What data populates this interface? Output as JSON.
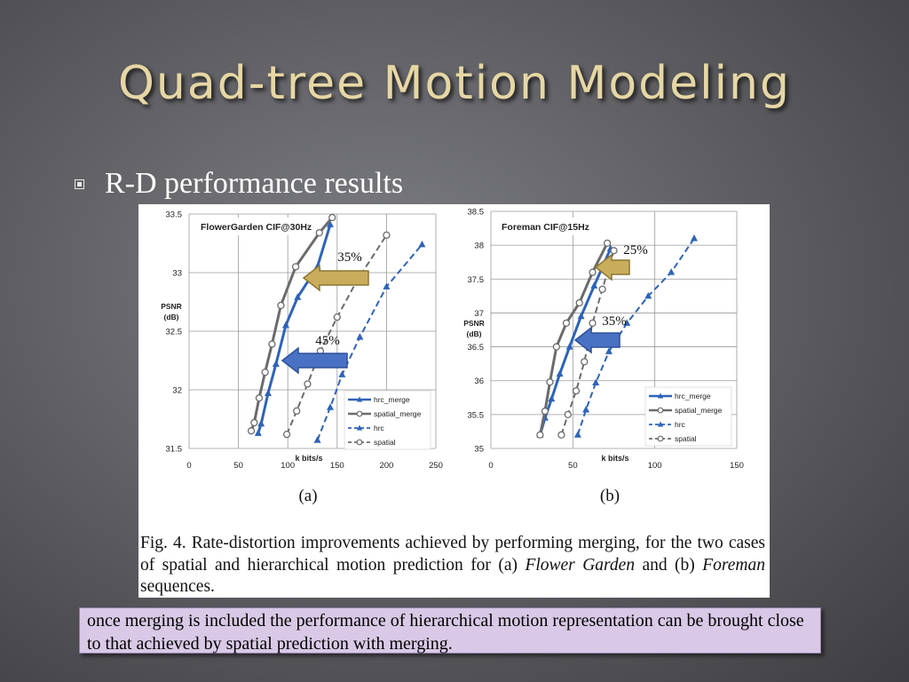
{
  "slide": {
    "title": "Quad-tree Motion Modeling",
    "bullet": "R-D performance results",
    "note": "once merging is included the performance of hierarchical motion representation can be brought close  to  that  achieved  by  spatial  prediction  with  merging.",
    "caption": {
      "prefix": "Fig. 4.   Rate-distortion improvements achieved by performing merging, for the two cases of spatial and hierarchical motion prediction for (a) ",
      "italic1": "Flower Garden",
      "middle": " and (b) ",
      "italic2": "Foreman",
      "suffix": " sequences."
    }
  },
  "colors": {
    "blue": "#2e63b8",
    "gray": "#6b6b6b",
    "gold_arrow": "#c9ad5c",
    "blue_arrow": "#4a72c4",
    "note_bg": "#d9c9e6"
  },
  "chart_data": [
    {
      "type": "line",
      "title": "FlowerGarden  CIF@30Hz",
      "panel_label": "(a)",
      "xlabel": "k bits/s",
      "ylabel": "PSNR (dB)",
      "xlim": [
        0,
        250
      ],
      "ylim": [
        31.5,
        33.5
      ],
      "xticks": [
        "0",
        "50",
        "100",
        "150",
        "200",
        "250"
      ],
      "yticks": [
        "31.5",
        "32",
        "32.5",
        "33",
        "33.5"
      ],
      "grid": true,
      "legend": "bottom-right",
      "series": [
        {
          "name": "hrc_merge",
          "style": "solid",
          "marker": "triangle",
          "color": "#2e63b8",
          "x": [
            70,
            73,
            80,
            88,
            98,
            110,
            130,
            143
          ],
          "y": [
            31.63,
            31.71,
            31.97,
            32.22,
            32.55,
            32.79,
            33.05,
            33.41
          ]
        },
        {
          "name": "spatial_merge",
          "style": "solid",
          "marker": "circle",
          "color": "#6b6b6b",
          "x": [
            63,
            66,
            71,
            77,
            84,
            93,
            108,
            132,
            145
          ],
          "y": [
            31.65,
            31.72,
            31.93,
            32.15,
            32.39,
            32.72,
            33.05,
            33.34,
            33.47
          ]
        },
        {
          "name": "hrc",
          "style": "dashed",
          "marker": "triangle",
          "color": "#2e63b8",
          "x": [
            130,
            143,
            155,
            173,
            200,
            236
          ],
          "y": [
            31.57,
            31.85,
            32.13,
            32.45,
            32.88,
            33.24
          ]
        },
        {
          "name": "spatial",
          "style": "dashed",
          "marker": "circle",
          "color": "#6b6b6b",
          "x": [
            99,
            109,
            120,
            133,
            150,
            170,
            200
          ],
          "y": [
            31.62,
            31.82,
            32.05,
            32.33,
            32.62,
            32.93,
            33.32
          ]
        }
      ],
      "annotations": [
        {
          "text": "35%",
          "arrow": "gold"
        },
        {
          "text": "45%",
          "arrow": "blue"
        }
      ]
    },
    {
      "type": "line",
      "title": "Foreman  CIF@15Hz",
      "panel_label": "(b)",
      "xlabel": "k bits/s",
      "ylabel": "PSNR (dB)",
      "xlim": [
        0,
        150
      ],
      "ylim": [
        35,
        38.5
      ],
      "xticks": [
        "0",
        "50",
        "100",
        "150"
      ],
      "yticks": [
        "35",
        "35.5",
        "36",
        "36.5",
        "37",
        "37.5",
        "38",
        "38.5"
      ],
      "grid": true,
      "legend": "bottom-right",
      "series": [
        {
          "name": "hrc_merge",
          "style": "solid",
          "marker": "triangle",
          "color": "#2e63b8",
          "x": [
            30,
            33,
            37,
            42,
            48,
            55,
            63,
            73
          ],
          "y": [
            35.2,
            35.45,
            35.73,
            36.1,
            36.5,
            36.95,
            37.4,
            37.95
          ]
        },
        {
          "name": "spatial_merge",
          "style": "solid",
          "marker": "circle",
          "color": "#6b6b6b",
          "x": [
            30,
            33,
            36,
            40,
            46,
            54,
            62,
            71
          ],
          "y": [
            35.2,
            35.55,
            35.98,
            36.5,
            36.85,
            37.15,
            37.6,
            38.03
          ]
        },
        {
          "name": "hrc",
          "style": "dashed",
          "marker": "triangle",
          "color": "#2e63b8",
          "x": [
            53,
            58,
            64,
            72,
            83,
            96,
            110,
            124
          ],
          "y": [
            35.2,
            35.57,
            35.97,
            36.43,
            36.85,
            37.25,
            37.6,
            38.1
          ]
        },
        {
          "name": "spatial",
          "style": "dashed",
          "marker": "circle",
          "color": "#6b6b6b",
          "x": [
            43,
            47,
            52,
            57,
            62,
            68,
            75
          ],
          "y": [
            35.2,
            35.5,
            35.85,
            36.28,
            36.85,
            37.35,
            37.92
          ]
        }
      ],
      "annotations": [
        {
          "text": "25%",
          "arrow": "gold"
        },
        {
          "text": "35%",
          "arrow": "blue"
        }
      ]
    }
  ]
}
